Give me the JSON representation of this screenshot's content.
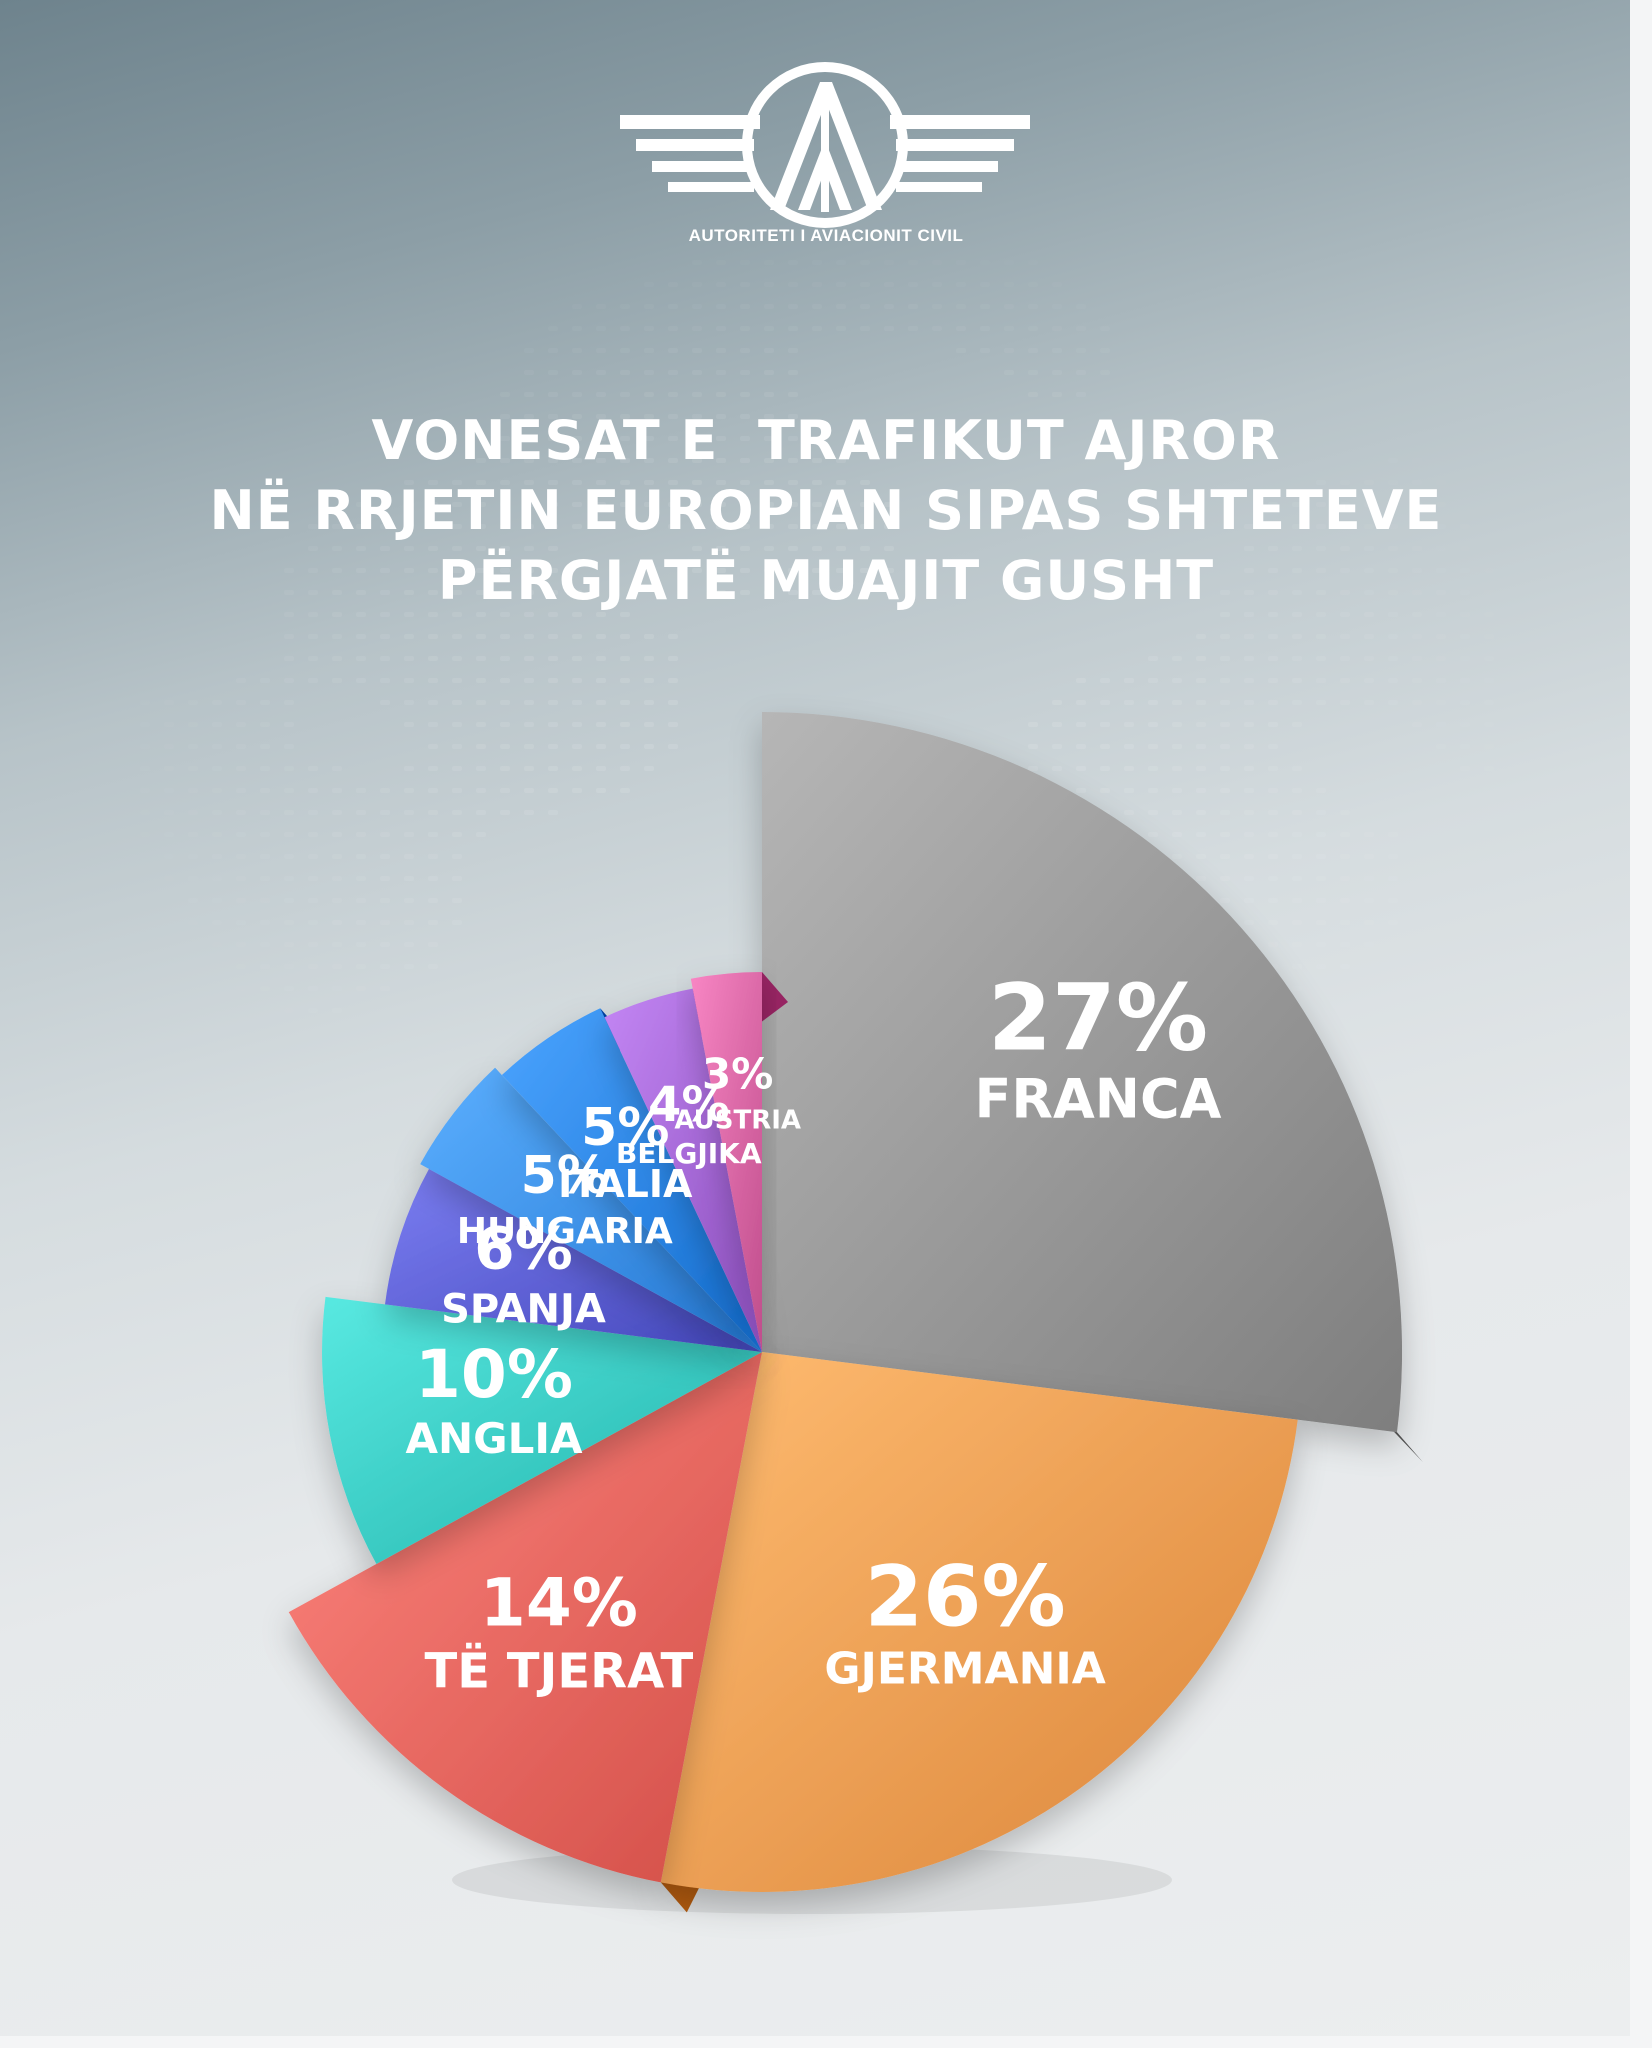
{
  "header": {
    "logo_caption": "AUTORITETI I AVIACIONIT CIVIL",
    "title_lines": [
      "VONESAT E  TRAFIKUT AJROR",
      "NË RRJETIN EUROPIAN SIPAS SHTETEVE",
      "PËRGJATË MUAJIT GUSHT"
    ]
  },
  "chart_data": {
    "type": "pie",
    "title": "VONESAT E  TRAFIKUT AJROR NË RRJETIN EUROPIAN SIPAS SHTETEVE PËRGJATË MUAJIT GUSHT",
    "unit": "%",
    "slices": [
      {
        "label": "FRANCA",
        "value": 27,
        "value_label": "27%",
        "color": "#9a9a9a"
      },
      {
        "label": "GJERMANIA",
        "value": 26,
        "value_label": "26%",
        "color": "#f6a055"
      },
      {
        "label": "TË TJERAT",
        "value": 14,
        "value_label": "14%",
        "color": "#ee6a63"
      },
      {
        "label": "ANGLIA",
        "value": 10,
        "value_label": "10%",
        "color": "#3ccdc5"
      },
      {
        "label": "SPANJA",
        "value": 6,
        "value_label": "6%",
        "color": "#5f62d6"
      },
      {
        "label": "HUNGARIA",
        "value": 5,
        "value_label": "5%",
        "color": "#3f93ee"
      },
      {
        "label": "ITALIA",
        "value": 5,
        "value_label": "5%",
        "color": "#2f88ea"
      },
      {
        "label": "BELGJIKA",
        "value": 4,
        "value_label": "4%",
        "color": "#a76ad8"
      },
      {
        "label": "AUSTRIA",
        "value": 3,
        "value_label": "3%",
        "color": "#dc6aa8"
      }
    ]
  }
}
